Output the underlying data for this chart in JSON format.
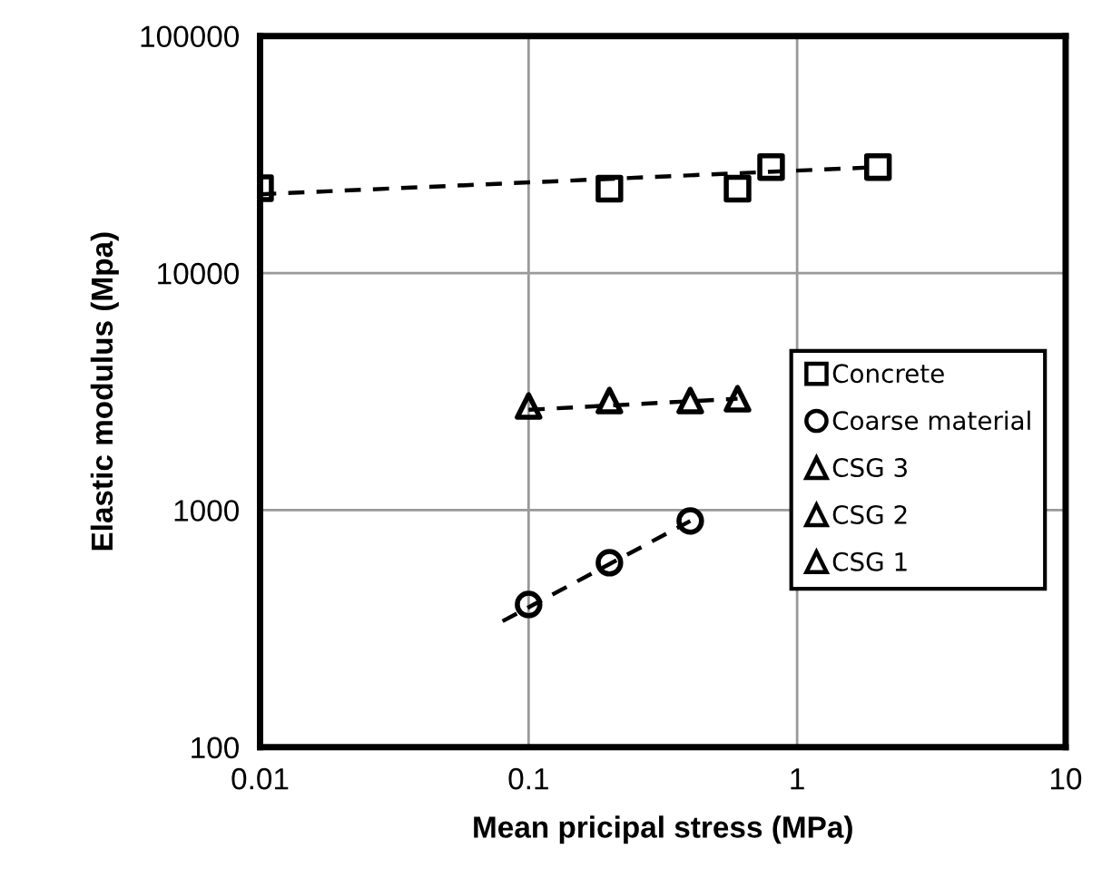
{
  "chart_data": {
    "type": "scatter",
    "xlabel": "Mean pricipal stress (MPa)",
    "ylabel": "Elastic modulus (Mpa)",
    "log": "xy",
    "grid": true,
    "legend": "right",
    "xlim": [
      0.01,
      10
    ],
    "xticks": [
      0.01,
      0.1,
      1,
      10
    ],
    "ylim": [
      100,
      100000
    ],
    "yticks": [
      100,
      1000,
      10000,
      100000
    ],
    "series": [
      {
        "name": "Concrete",
        "marker": "square",
        "color": "#000000",
        "x": [
          0.01,
          0.2,
          0.6,
          0.8,
          2
        ],
        "values": [
          22800,
          22700,
          22700,
          28000,
          28000
        ]
      },
      {
        "name": "Coarse material",
        "marker": "circle",
        "color": "#000000",
        "x": [
          0.1,
          0.2,
          0.4
        ],
        "values": [
          400,
          600,
          900
        ]
      },
      {
        "name": "CSG 3",
        "marker": "triangle",
        "color": "#000000",
        "x": [
          0.1,
          0.2
        ],
        "values": [
          2750,
          2900
        ]
      },
      {
        "name": "CSG 2",
        "marker": "triangle",
        "color": "#000000",
        "x": [
          0.4
        ],
        "values": [
          2900
        ]
      },
      {
        "name": "CSG 1",
        "marker": "triangle",
        "color": "#000000",
        "x": [
          0.6
        ],
        "values": [
          2950
        ]
      },
      {
        "type": "line",
        "line_style": "dashed",
        "marker": "none",
        "color": "#000000",
        "x": [
          0.01,
          2
        ],
        "values": [
          21500,
          28000
        ]
      },
      {
        "type": "line",
        "line_style": "dashed",
        "marker": "none",
        "color": "#000000",
        "x": [
          0.08,
          0.4
        ],
        "values": [
          340,
          900
        ]
      },
      {
        "type": "line",
        "line_style": "dashed",
        "marker": "none",
        "color": "#000000",
        "x": [
          0.1,
          0.6
        ],
        "values": [
          2650,
          2950
        ]
      }
    ]
  }
}
